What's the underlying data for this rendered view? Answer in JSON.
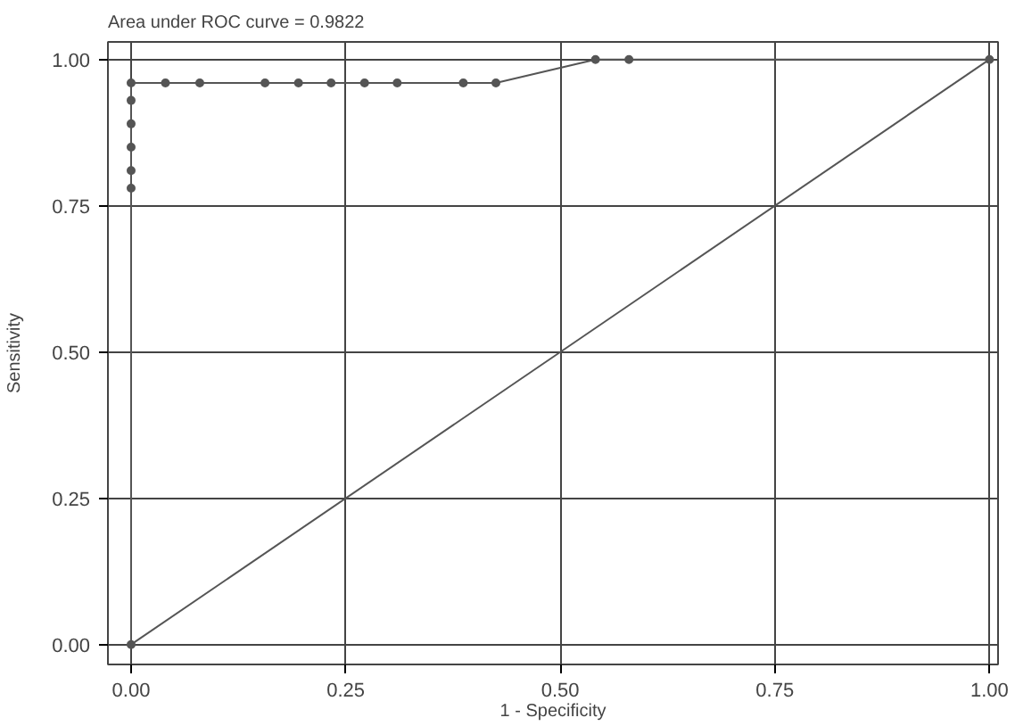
{
  "chart_data": {
    "type": "line",
    "title": "Area under ROC curve = 0.9822",
    "xlabel": "1 - Specificity",
    "ylabel": "Sensitivity",
    "series": [
      {
        "color": "#555555",
        "marker": "circle",
        "x": [
          0,
          0,
          0,
          0,
          0,
          0,
          0,
          0.04,
          0.08,
          0.156,
          0.195,
          0.233,
          0.272,
          0.31,
          0.387,
          0.425,
          0.541,
          0.58,
          1
        ],
        "values": [
          0,
          0.78,
          0.81,
          0.85,
          0.89,
          0.93,
          0.96,
          0.96,
          0.96,
          0.96,
          0.96,
          0.96,
          0.96,
          0.96,
          0.96,
          0.96,
          1,
          1,
          1
        ]
      },
      {
        "color": "#555555",
        "marker": "none",
        "x": [
          0,
          1
        ],
        "values": [
          0,
          1
        ]
      }
    ],
    "xlim": [
      -0.027,
      1.01
    ],
    "ylim": [
      -0.034,
      1.03
    ],
    "xticks": [
      {
        "value": 0,
        "label": "0.00"
      },
      {
        "value": 0.25,
        "label": "0.25"
      },
      {
        "value": 0.5,
        "label": "0.50"
      },
      {
        "value": 0.75,
        "label": "0.75"
      },
      {
        "value": 1,
        "label": "1.00"
      }
    ],
    "yticks": [
      {
        "value": 0,
        "label": "0.00"
      },
      {
        "value": 0.25,
        "label": "0.25"
      },
      {
        "value": 0.5,
        "label": "0.50"
      },
      {
        "value": 0.75,
        "label": "0.75"
      },
      {
        "value": 1,
        "label": "1.00"
      }
    ],
    "grid": true,
    "line_style": "solid"
  }
}
